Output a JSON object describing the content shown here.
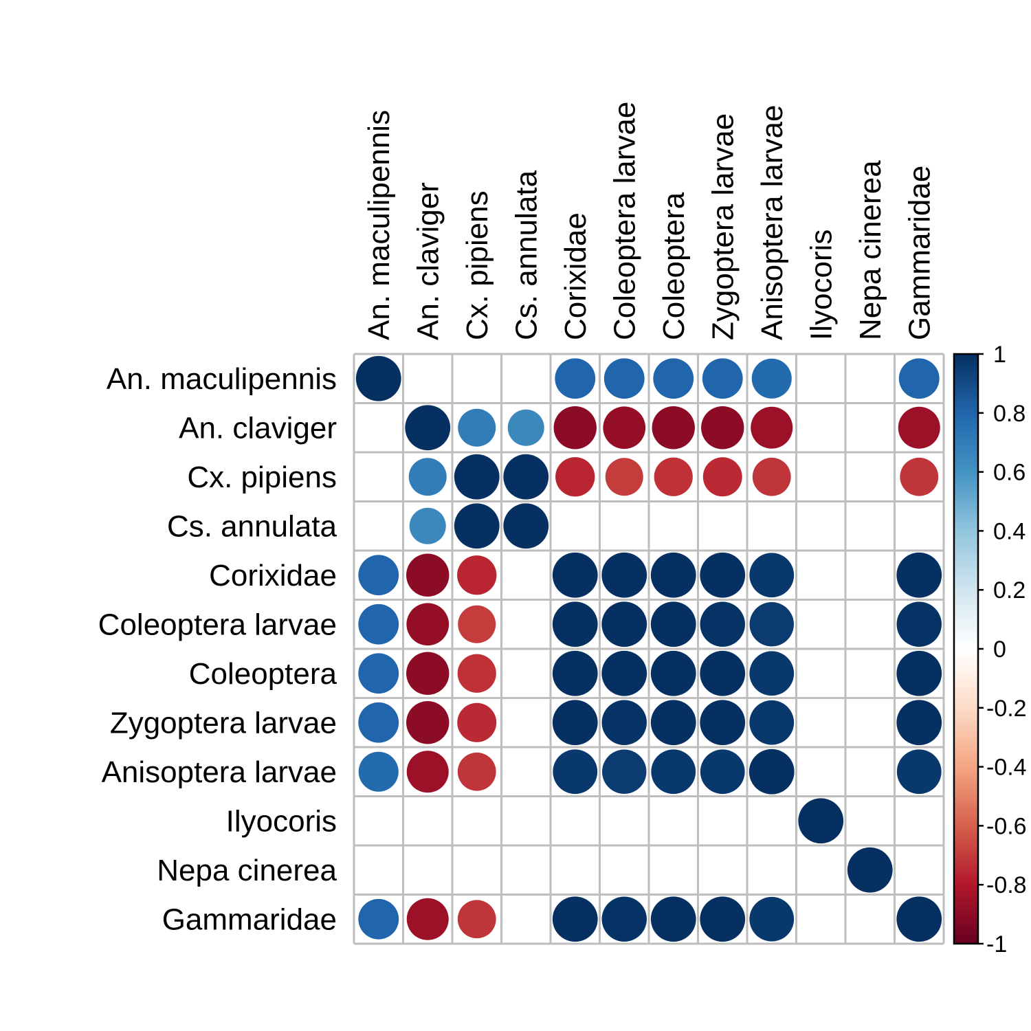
{
  "chart_data": {
    "type": "heatmap",
    "title": "",
    "rows": [
      "An. maculipennis",
      "An. claviger",
      "Cx. pipiens",
      "Cs. annulata",
      "Corixidae",
      "Coleoptera larvae",
      "Coleoptera",
      "Zygoptera larvae",
      "Anisoptera larvae",
      "Ilyocoris",
      "Nepa cinerea",
      "Gammaridae"
    ],
    "columns": [
      "An. maculipennis",
      "An. claviger",
      "Cx. pipiens",
      "Cs. annulata",
      "Corixidae",
      "Coleoptera larvae",
      "Coleoptera",
      "Zygoptera larvae",
      "Anisoptera larvae",
      "Ilyocoris",
      "Nepa cinerea",
      "Gammaridae"
    ],
    "values": [
      [
        1,
        null,
        null,
        null,
        0.8,
        0.8,
        0.8,
        0.8,
        0.78,
        null,
        null,
        0.8
      ],
      [
        null,
        1,
        0.7,
        0.65,
        -0.9,
        -0.88,
        -0.9,
        -0.9,
        -0.86,
        null,
        null,
        -0.86
      ],
      [
        null,
        0.7,
        1,
        1,
        -0.76,
        -0.7,
        -0.73,
        -0.75,
        -0.72,
        null,
        null,
        -0.72
      ],
      [
        null,
        0.65,
        1,
        1,
        null,
        null,
        null,
        null,
        null,
        null,
        null,
        null
      ],
      [
        0.8,
        -0.9,
        -0.76,
        null,
        1,
        1,
        1,
        1,
        0.97,
        null,
        null,
        1
      ],
      [
        0.8,
        -0.88,
        -0.7,
        null,
        1,
        1,
        1,
        0.99,
        0.96,
        null,
        null,
        0.99
      ],
      [
        0.8,
        -0.9,
        -0.73,
        null,
        1,
        1,
        1,
        1,
        0.97,
        null,
        null,
        1
      ],
      [
        0.8,
        -0.9,
        -0.75,
        null,
        1,
        0.99,
        1,
        1,
        0.97,
        null,
        null,
        1
      ],
      [
        0.78,
        -0.86,
        -0.72,
        null,
        0.97,
        0.96,
        0.97,
        0.97,
        1,
        null,
        null,
        0.97
      ],
      [
        null,
        null,
        null,
        null,
        null,
        null,
        null,
        null,
        null,
        1,
        null,
        null
      ],
      [
        null,
        null,
        null,
        null,
        null,
        null,
        null,
        null,
        null,
        null,
        1,
        null
      ],
      [
        0.8,
        -0.86,
        -0.72,
        null,
        1,
        0.99,
        1,
        1,
        0.97,
        null,
        null,
        1
      ]
    ],
    "legend": {
      "position": "right",
      "range": [
        -1,
        1
      ],
      "ticks": [
        "1",
        "0.8",
        "0.6",
        "0.4",
        "0.2",
        "0",
        "-0.2",
        "-0.4",
        "-0.6",
        "-0.8",
        "-1"
      ]
    },
    "color_scale": {
      "neg1": "#67001F",
      "mid": "#FFFFFF",
      "pos1": "#053061"
    }
  }
}
